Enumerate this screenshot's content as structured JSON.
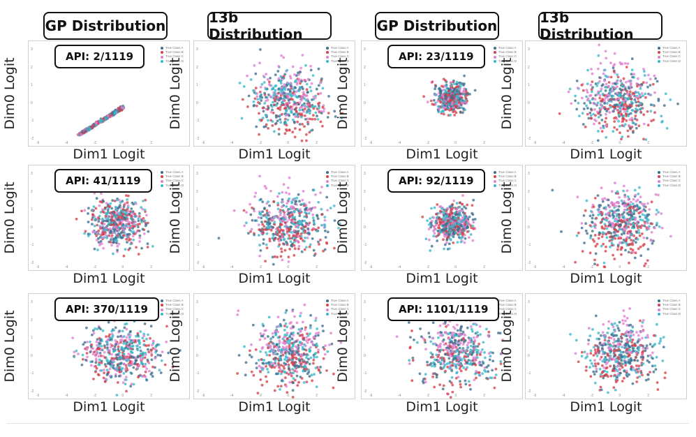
{
  "headers": [
    {
      "label": "GP Distribution"
    },
    {
      "label": "13b Distribution"
    },
    {
      "label": "GP Distribution"
    },
    {
      "label": "13b Distribution"
    }
  ],
  "axis": {
    "xlabel": "Dim1 Logit",
    "ylabel": "Dim0 Logit"
  },
  "legend": [
    "True Class A",
    "True Class B",
    "True Class C",
    "True Class D"
  ],
  "colors": {
    "class_a": "#3d6f8f",
    "class_b": "#d6404a",
    "class_c": "#e07fd0",
    "class_d": "#38b8cc"
  },
  "chart_data": [
    {
      "type": "scatter",
      "row": 1,
      "col": 1,
      "variant": "GP",
      "api": "API: 2/1119",
      "xlim": [
        -6,
        4
      ],
      "ylim": [
        -2,
        3
      ],
      "pattern": "line"
    },
    {
      "type": "scatter",
      "row": 1,
      "col": 2,
      "variant": "13b",
      "xlim": [
        -6,
        4
      ],
      "ylim": [
        -2,
        3
      ],
      "pattern": "spread"
    },
    {
      "type": "scatter",
      "row": 1,
      "col": 3,
      "variant": "GP",
      "api": "API: 23/1119",
      "xlim": [
        -6,
        4
      ],
      "ylim": [
        -2,
        3
      ],
      "pattern": "tight"
    },
    {
      "type": "scatter",
      "row": 1,
      "col": 4,
      "variant": "13b",
      "xlim": [
        -6,
        4
      ],
      "ylim": [
        -2,
        3
      ],
      "pattern": "spread"
    },
    {
      "type": "scatter",
      "row": 2,
      "col": 1,
      "variant": "GP",
      "api": "API: 41/1119",
      "xlim": [
        -6,
        4
      ],
      "ylim": [
        -2,
        3
      ],
      "pattern": "medium"
    },
    {
      "type": "scatter",
      "row": 2,
      "col": 2,
      "variant": "13b",
      "xlim": [
        -6,
        4
      ],
      "ylim": [
        -2,
        3
      ],
      "pattern": "spread"
    },
    {
      "type": "scatter",
      "row": 2,
      "col": 3,
      "variant": "GP",
      "api": "API: 92/1119",
      "xlim": [
        -6,
        4
      ],
      "ylim": [
        -2,
        3
      ],
      "pattern": "medium-tight"
    },
    {
      "type": "scatter",
      "row": 2,
      "col": 4,
      "variant": "13b",
      "xlim": [
        -6,
        4
      ],
      "ylim": [
        -2,
        3
      ],
      "pattern": "spread"
    },
    {
      "type": "scatter",
      "row": 3,
      "col": 1,
      "variant": "GP",
      "api": "API: 370/1119",
      "xlim": [
        -6,
        4
      ],
      "ylim": [
        -2,
        3
      ],
      "pattern": "wide"
    },
    {
      "type": "scatter",
      "row": 3,
      "col": 2,
      "variant": "13b",
      "xlim": [
        -6,
        4
      ],
      "ylim": [
        -2,
        3
      ],
      "pattern": "spread"
    },
    {
      "type": "scatter",
      "row": 3,
      "col": 3,
      "variant": "GP",
      "api": "API: 1101/1119",
      "xlim": [
        -6,
        4
      ],
      "ylim": [
        -2,
        3
      ],
      "pattern": "spread"
    },
    {
      "type": "scatter",
      "row": 3,
      "col": 4,
      "variant": "13b",
      "xlim": [
        -6,
        4
      ],
      "ylim": [
        -2,
        3
      ],
      "pattern": "spread"
    }
  ]
}
